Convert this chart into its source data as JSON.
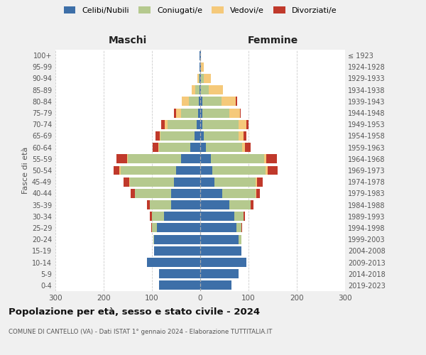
{
  "age_groups": [
    "0-4",
    "5-9",
    "10-14",
    "15-19",
    "20-24",
    "25-29",
    "30-34",
    "35-39",
    "40-44",
    "45-49",
    "50-54",
    "55-59",
    "60-64",
    "65-69",
    "70-74",
    "75-79",
    "80-84",
    "85-89",
    "90-94",
    "95-99",
    "100+"
  ],
  "birth_years": [
    "2019-2023",
    "2014-2018",
    "2009-2013",
    "2004-2008",
    "1999-2003",
    "1994-1998",
    "1989-1993",
    "1984-1988",
    "1979-1983",
    "1974-1978",
    "1969-1973",
    "1964-1968",
    "1959-1963",
    "1954-1958",
    "1949-1953",
    "1944-1948",
    "1939-1943",
    "1934-1938",
    "1929-1933",
    "1924-1928",
    "≤ 1923"
  ],
  "colors": {
    "celibi": "#3d6fa8",
    "coniugati": "#b5c98e",
    "vedovi": "#f5c97a",
    "divorziati": "#c0392b"
  },
  "maschi": {
    "celibi": [
      85,
      85,
      110,
      95,
      95,
      90,
      75,
      60,
      60,
      55,
      50,
      40,
      20,
      12,
      8,
      5,
      3,
      2,
      1,
      1,
      1
    ],
    "coniugati": [
      0,
      0,
      0,
      0,
      2,
      10,
      25,
      45,
      75,
      90,
      115,
      110,
      65,
      70,
      60,
      35,
      20,
      8,
      2,
      0,
      0
    ],
    "vedovi": [
      0,
      0,
      0,
      0,
      0,
      0,
      0,
      0,
      1,
      2,
      2,
      2,
      2,
      2,
      5,
      10,
      15,
      8,
      3,
      0,
      0
    ],
    "divorziati": [
      0,
      0,
      0,
      0,
      0,
      2,
      5,
      5,
      8,
      12,
      12,
      22,
      12,
      8,
      8,
      5,
      0,
      0,
      0,
      0,
      0
    ]
  },
  "femmine": {
    "celibi": [
      65,
      80,
      95,
      85,
      80,
      75,
      70,
      60,
      45,
      30,
      25,
      22,
      12,
      8,
      5,
      5,
      4,
      2,
      2,
      2,
      1
    ],
    "coniugati": [
      0,
      0,
      0,
      0,
      5,
      10,
      20,
      45,
      70,
      85,
      110,
      110,
      75,
      72,
      75,
      55,
      40,
      15,
      5,
      0,
      0
    ],
    "vedovi": [
      0,
      0,
      0,
      0,
      0,
      0,
      0,
      0,
      1,
      2,
      5,
      5,
      5,
      10,
      15,
      22,
      30,
      30,
      15,
      5,
      1
    ],
    "divorziati": [
      0,
      0,
      0,
      0,
      0,
      2,
      2,
      5,
      8,
      12,
      20,
      22,
      12,
      5,
      5,
      2,
      2,
      0,
      0,
      0,
      0
    ]
  },
  "xlim": 300,
  "title": "Popolazione per età, sesso e stato civile - 2024",
  "subtitle": "COMUNE DI CANTELLO (VA) - Dati ISTAT 1° gennaio 2024 - Elaborazione TUTTITALIA.IT",
  "xlabel_left": "Maschi",
  "xlabel_right": "Femmine",
  "ylabel_left": "Fasce di età",
  "legend_labels": [
    "Celibi/Nubili",
    "Coniugati/e",
    "Vedovi/e",
    "Divorziati/e"
  ],
  "bg_color": "#f0f0f0",
  "plot_bg": "#ffffff"
}
